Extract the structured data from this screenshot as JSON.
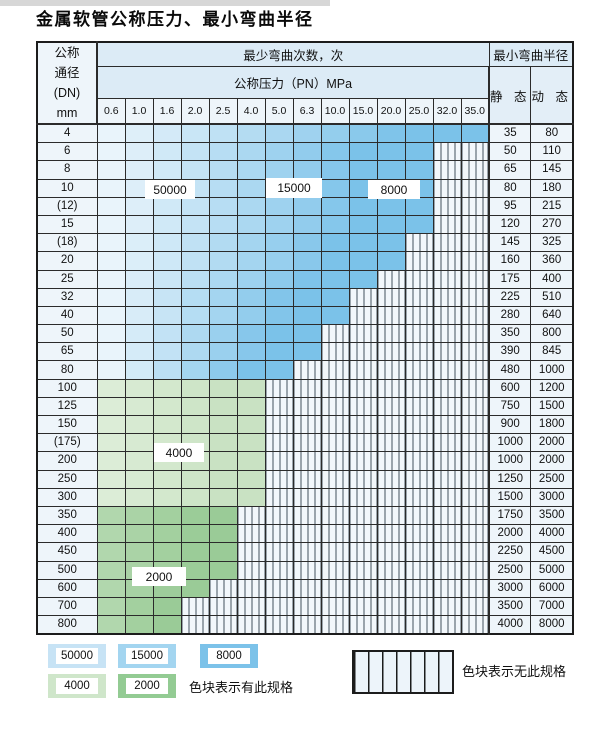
{
  "title": "金属软管公称压力、最小弯曲半径",
  "table": {
    "dn_header": "公称\n通径\n(DN)\nmm",
    "cycles_header": "最少弯曲次数，次",
    "pressure_header": "公称压力（PN）MPa",
    "radius_header": "最小弯曲半径",
    "static_header": "静 态",
    "dynamic_header": "动 态",
    "pressures": [
      "0.6",
      "1.0",
      "1.6",
      "2.0",
      "2.5",
      "4.0",
      "5.0",
      "6.3",
      "10.0",
      "15.0",
      "20.0",
      "25.0",
      "32.0",
      "35.0"
    ],
    "rows": [
      {
        "dn": "4",
        "group": "blue",
        "colored": 14,
        "static": "35",
        "dynamic": "80"
      },
      {
        "dn": "6",
        "group": "blue",
        "colored": 12,
        "static": "50",
        "dynamic": "110"
      },
      {
        "dn": "8",
        "group": "blue",
        "colored": 12,
        "static": "65",
        "dynamic": "145"
      },
      {
        "dn": "10",
        "group": "blue",
        "colored": 12,
        "static": "80",
        "dynamic": "180"
      },
      {
        "dn": "(12)",
        "group": "blue",
        "colored": 12,
        "static": "95",
        "dynamic": "215"
      },
      {
        "dn": "15",
        "group": "blue",
        "colored": 12,
        "static": "120",
        "dynamic": "270"
      },
      {
        "dn": "(18)",
        "group": "blue",
        "colored": 11,
        "static": "145",
        "dynamic": "325"
      },
      {
        "dn": "20",
        "group": "blue",
        "colored": 11,
        "static": "160",
        "dynamic": "360"
      },
      {
        "dn": "25",
        "group": "blue",
        "colored": 10,
        "static": "175",
        "dynamic": "400"
      },
      {
        "dn": "32",
        "group": "blue",
        "colored": 9,
        "static": "225",
        "dynamic": "510"
      },
      {
        "dn": "40",
        "group": "blue",
        "colored": 9,
        "static": "280",
        "dynamic": "640"
      },
      {
        "dn": "50",
        "group": "blue",
        "colored": 8,
        "static": "350",
        "dynamic": "800"
      },
      {
        "dn": "65",
        "group": "blue",
        "colored": 8,
        "static": "390",
        "dynamic": "845"
      },
      {
        "dn": "80",
        "group": "blue",
        "colored": 7,
        "static": "480",
        "dynamic": "1000"
      },
      {
        "dn": "100",
        "group": "green4000",
        "colored": 6,
        "static": "600",
        "dynamic": "1200"
      },
      {
        "dn": "125",
        "group": "green4000",
        "colored": 6,
        "static": "750",
        "dynamic": "1500"
      },
      {
        "dn": "150",
        "group": "green4000",
        "colored": 6,
        "static": "900",
        "dynamic": "1800"
      },
      {
        "dn": "(175)",
        "group": "green4000",
        "colored": 6,
        "static": "1000",
        "dynamic": "2000"
      },
      {
        "dn": "200",
        "group": "green4000",
        "colored": 6,
        "static": "1000",
        "dynamic": "2000"
      },
      {
        "dn": "250",
        "group": "green4000",
        "colored": 6,
        "static": "1250",
        "dynamic": "2500"
      },
      {
        "dn": "300",
        "group": "green4000",
        "colored": 6,
        "static": "1500",
        "dynamic": "3000"
      },
      {
        "dn": "350",
        "group": "green2000",
        "colored": 5,
        "static": "1750",
        "dynamic": "3500"
      },
      {
        "dn": "400",
        "group": "green2000",
        "colored": 5,
        "static": "2000",
        "dynamic": "4000"
      },
      {
        "dn": "450",
        "group": "green2000",
        "colored": 5,
        "static": "2250",
        "dynamic": "4500"
      },
      {
        "dn": "500",
        "group": "green2000",
        "colored": 5,
        "static": "2500",
        "dynamic": "5000"
      },
      {
        "dn": "600",
        "group": "green2000",
        "colored": 4,
        "static": "3000",
        "dynamic": "6000"
      },
      {
        "dn": "700",
        "group": "green2000",
        "colored": 3,
        "static": "3500",
        "dynamic": "7000"
      },
      {
        "dn": "800",
        "group": "green2000",
        "colored": 3,
        "static": "4000",
        "dynamic": "8000"
      }
    ]
  },
  "overlays": {
    "b50000": "50000",
    "b15000": "15000",
    "b8000": "8000",
    "g4000": "4000",
    "g2000": "2000"
  },
  "legend": {
    "items": [
      {
        "label": "50000",
        "color": "#c7e3f5"
      },
      {
        "label": "15000",
        "color": "#a3d5f0"
      },
      {
        "label": "8000",
        "color": "#7cc2e9"
      },
      {
        "label": "4000",
        "color": "#cfe6ca"
      },
      {
        "label": "2000",
        "color": "#93cb93"
      }
    ],
    "has_spec_text": "色块表示有此规格",
    "no_spec_text": "色块表示无此规格"
  },
  "colors": {
    "palettes": {
      "blue": [
        "#e9f4fb",
        "#7bc2e9"
      ],
      "green4000": [
        "#dcedd7",
        "#c9e2c3"
      ],
      "green2000": [
        "#b1d7ad",
        "#9acb97"
      ]
    },
    "grid_line": "#2b2b2b",
    "hatch_line": "#42525e",
    "header_bg": "#dcebf6",
    "label_col_bg": "#eef5fa"
  }
}
